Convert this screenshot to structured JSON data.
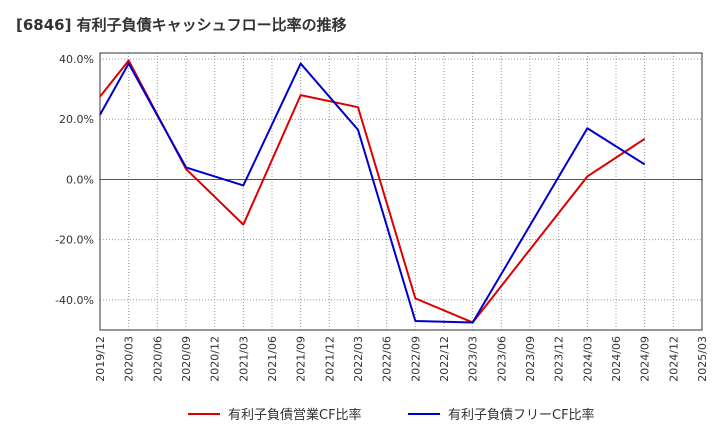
{
  "chart_data": {
    "type": "line",
    "title": "[6846]  有利子負債キャッシュフロー比率の推移",
    "x": [
      "2019/12",
      "2020/03",
      "2020/06",
      "2020/09",
      "2020/12",
      "2021/03",
      "2021/06",
      "2021/09",
      "2021/12",
      "2022/03",
      "2022/06",
      "2022/09",
      "2022/12",
      "2023/03",
      "2023/06",
      "2023/09",
      "2023/12",
      "2024/03",
      "2024/06",
      "2024/09",
      "2024/12",
      "2025/03"
    ],
    "y_ticks": [
      "40.0%",
      "20.0%",
      "0.0%",
      "-20.0%",
      "-40.0%"
    ],
    "ylim": [
      -50,
      42
    ],
    "grid": true,
    "legend_position": "bottom",
    "series": [
      {
        "name": "有利子負債営業CF比率",
        "color": "#dd0000",
        "values": [
          27.5,
          39.5,
          null,
          3.5,
          null,
          -15.0,
          null,
          28.0,
          null,
          24.0,
          null,
          -39.5,
          null,
          -47.5,
          null,
          null,
          null,
          1.0,
          null,
          13.5,
          null,
          null
        ]
      },
      {
        "name": "有利子負債フリーCF比率",
        "color": "#0000cc",
        "values": [
          21.5,
          38.5,
          null,
          4.0,
          null,
          -2.0,
          null,
          38.5,
          null,
          16.5,
          null,
          -47.0,
          null,
          -47.5,
          null,
          null,
          null,
          17.0,
          null,
          5.0,
          null,
          null
        ]
      }
    ]
  }
}
